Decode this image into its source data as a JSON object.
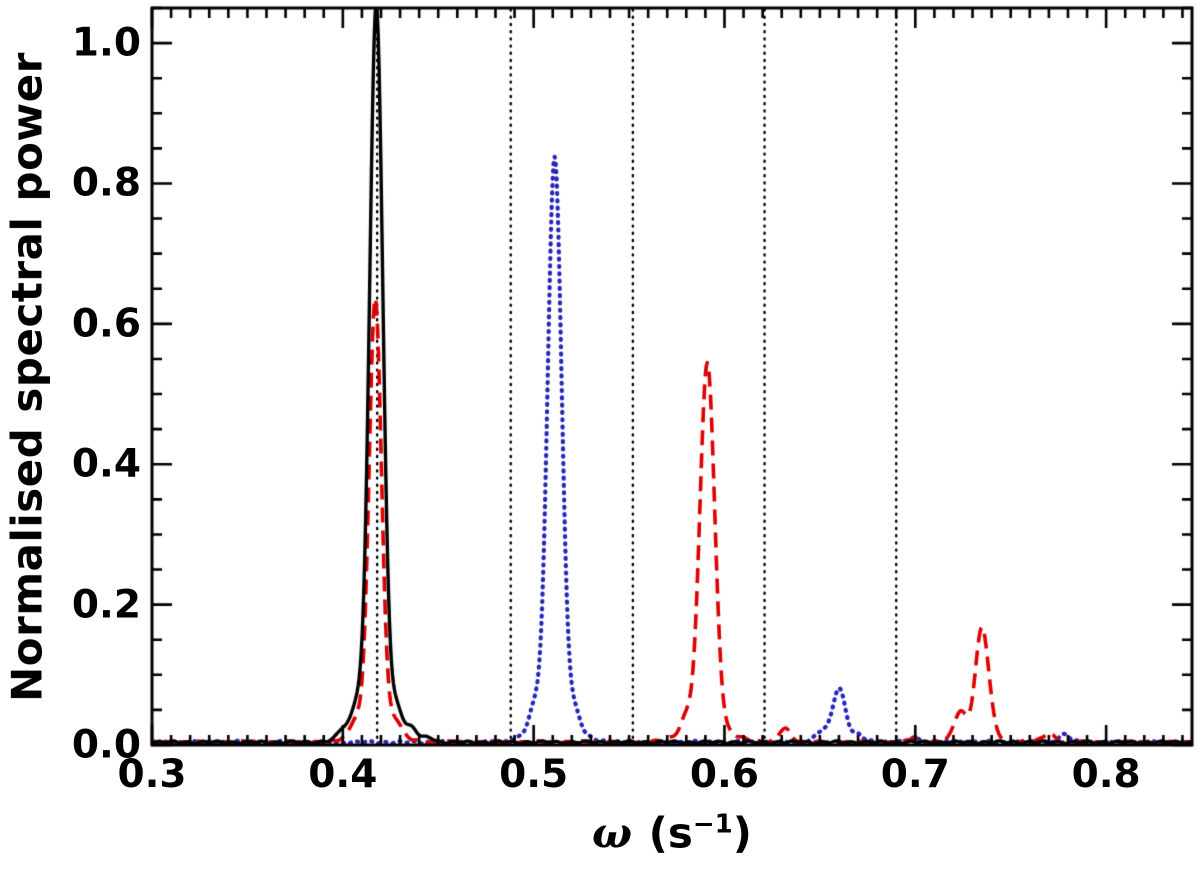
{
  "figure": {
    "background": "#ffffff",
    "axis_color": "#000000"
  },
  "chart_data": {
    "type": "line",
    "title": "",
    "xlabel": "ω (s⁻¹)",
    "ylabel": "Normalised spectral power",
    "xlim": [
      0.3,
      0.845
    ],
    "ylim": [
      0.0,
      1.05
    ],
    "grid": false,
    "legend": null,
    "x_major_ticks": [
      0.3,
      0.4,
      0.5,
      0.6,
      0.7,
      0.8
    ],
    "x_tick_labels": [
      "0.3",
      "0.4",
      "0.5",
      "0.6",
      "0.7",
      "0.8"
    ],
    "x_minor_step": 0.01,
    "y_major_ticks": [
      0.0,
      0.2,
      0.4,
      0.6,
      0.8,
      1.0
    ],
    "y_tick_labels": [
      "0.0",
      "0.2",
      "0.4",
      "0.6",
      "0.8",
      "1.0"
    ],
    "y_minor_step": 0.05,
    "baseline": 0.004,
    "reference_lines": {
      "style": "dotted",
      "color": "#000000",
      "x_values": [
        0.418,
        0.488,
        0.552,
        0.621,
        0.69
      ]
    },
    "series": [
      {
        "name": "solid-black",
        "color": "#000000",
        "style": "solid",
        "peaks": [
          {
            "x": 0.4175,
            "height": 1.0,
            "width": 0.0034
          },
          {
            "x": 0.4075,
            "height": 0.03,
            "width": 0.0028
          },
          {
            "x": 0.4285,
            "height": 0.026,
            "width": 0.0028
          },
          {
            "x": 0.4,
            "height": 0.01,
            "width": 0.0025
          },
          {
            "x": 0.4365,
            "height": 0.013,
            "width": 0.0025
          },
          {
            "x": 0.445,
            "height": 0.006,
            "width": 0.0025
          }
        ]
      },
      {
        "name": "dashed-red",
        "color": "#dd0000",
        "style": "dashed",
        "peaks": [
          {
            "x": 0.417,
            "height": 0.6,
            "width": 0.0032
          },
          {
            "x": 0.4065,
            "height": 0.018,
            "width": 0.0028
          },
          {
            "x": 0.428,
            "height": 0.018,
            "width": 0.0028
          },
          {
            "x": 0.591,
            "height": 0.515,
            "width": 0.0038
          },
          {
            "x": 0.58,
            "height": 0.022,
            "width": 0.003
          },
          {
            "x": 0.6315,
            "height": 0.018,
            "width": 0.003
          },
          {
            "x": 0.735,
            "height": 0.155,
            "width": 0.0035
          },
          {
            "x": 0.7235,
            "height": 0.038,
            "width": 0.003
          },
          {
            "x": 0.77,
            "height": 0.012,
            "width": 0.003
          },
          {
            "x": 0.7,
            "height": 0.006,
            "width": 0.0025
          }
        ]
      },
      {
        "name": "dotted-blue",
        "color": "#2525bb",
        "style": "dotted",
        "peaks": [
          {
            "x": 0.511,
            "height": 0.795,
            "width": 0.0036
          },
          {
            "x": 0.5005,
            "height": 0.028,
            "width": 0.0028
          },
          {
            "x": 0.5215,
            "height": 0.022,
            "width": 0.0028
          },
          {
            "x": 0.66,
            "height": 0.073,
            "width": 0.0034
          },
          {
            "x": 0.6505,
            "height": 0.012,
            "width": 0.0028
          },
          {
            "x": 0.67,
            "height": 0.008,
            "width": 0.0026
          },
          {
            "x": 0.778,
            "height": 0.01,
            "width": 0.0028
          },
          {
            "x": 0.7,
            "height": 0.006,
            "width": 0.0025
          }
        ]
      }
    ]
  }
}
